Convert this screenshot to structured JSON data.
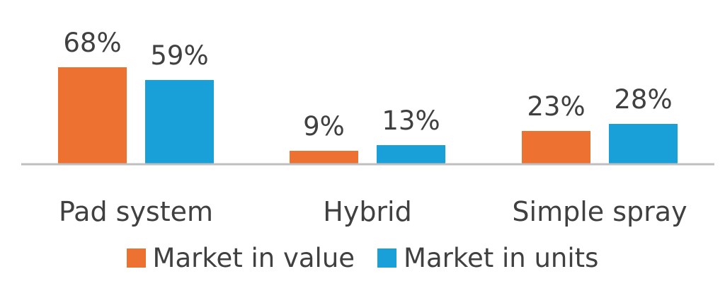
{
  "chart_data": {
    "type": "bar",
    "categories": [
      "Pad system",
      "Hybrid",
      "Simple spray"
    ],
    "series": [
      {
        "name": "Market in value",
        "values": [
          68,
          9,
          23
        ],
        "labels": [
          "68%",
          "9%",
          "23%"
        ],
        "color": "#ed7231"
      },
      {
        "name": "Market in units",
        "values": [
          59,
          13,
          28
        ],
        "labels": [
          "59%",
          "13%",
          "28%"
        ],
        "color": "#1aa0d8"
      }
    ],
    "ylim": [
      0,
      100
    ],
    "grid": false,
    "legend_position": "bottom",
    "title": "",
    "xlabel": "",
    "ylabel": ""
  },
  "colors": {
    "value_series": "#ed7231",
    "units_series": "#1aa0d8",
    "text": "#404040",
    "axis": "#bfbfbf"
  }
}
